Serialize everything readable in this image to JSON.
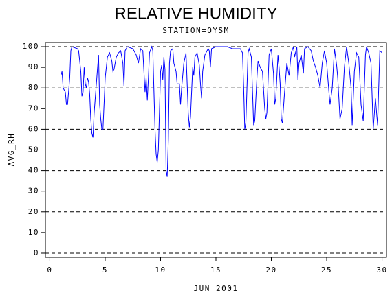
{
  "chart_data": {
    "type": "line",
    "title": "RELATIVE HUMIDITY",
    "subtitle": "STATION=OYSM",
    "x_label": "JUN 2001",
    "y_label": "AVG_RH",
    "xlim": [
      -0.4,
      30.4
    ],
    "ylim": [
      -2,
      102
    ],
    "xticks": [
      0,
      5,
      10,
      15,
      20,
      25,
      30
    ],
    "yticks": [
      0,
      10,
      20,
      30,
      40,
      50,
      60,
      70,
      80,
      90,
      100
    ],
    "gridlines": [
      0,
      20,
      40,
      60,
      80,
      100
    ],
    "series": [
      {
        "color": "#0000ff",
        "x": [
          1.0,
          1.1,
          1.2,
          1.4,
          1.5,
          1.6,
          1.8,
          1.9,
          2.0,
          2.5,
          2.6,
          2.8,
          2.9,
          3.0,
          3.1,
          3.2,
          3.3,
          3.4,
          3.5,
          3.6,
          3.7,
          3.8,
          3.9,
          4.0,
          4.2,
          4.4,
          4.5,
          4.6,
          4.7,
          4.8,
          5.0,
          5.2,
          5.4,
          5.6,
          5.7,
          5.8,
          6.0,
          6.2,
          6.4,
          6.5,
          6.6,
          6.7,
          6.8,
          7.0,
          7.5,
          7.8,
          8.0,
          8.2,
          8.4,
          8.6,
          8.7,
          8.8,
          8.9,
          9.0,
          9.2,
          9.3,
          9.5,
          9.6,
          9.7,
          9.8,
          10.0,
          10.1,
          10.2,
          10.3,
          10.4,
          10.5,
          10.6,
          10.7,
          10.8,
          10.9,
          11.1,
          11.2,
          11.4,
          11.5,
          11.7,
          11.8,
          11.9,
          12.1,
          12.3,
          12.5,
          12.6,
          12.7,
          12.9,
          13.0,
          13.1,
          13.3,
          13.5,
          13.6,
          13.7,
          13.8,
          14.0,
          14.3,
          14.4,
          14.5,
          14.6,
          15.0,
          15.5,
          16.0,
          16.5,
          17.2,
          17.4,
          17.5,
          17.6,
          17.7,
          17.9,
          18.0,
          18.2,
          18.4,
          18.5,
          18.7,
          18.8,
          19.0,
          19.2,
          19.4,
          19.5,
          19.6,
          19.8,
          20.0,
          20.2,
          20.3,
          20.4,
          20.6,
          20.7,
          20.8,
          20.9,
          21.0,
          21.2,
          21.4,
          21.6,
          21.8,
          22.0,
          22.1,
          22.3,
          22.4,
          22.5,
          22.7,
          22.9,
          23.0,
          23.3,
          23.6,
          23.8,
          24.0,
          24.2,
          24.4,
          24.6,
          24.8,
          25.0,
          25.2,
          25.3,
          25.5,
          25.7,
          25.9,
          26.0,
          26.2,
          26.4,
          26.6,
          26.8,
          27.0,
          27.2,
          27.3,
          27.5,
          27.7,
          27.9,
          28.1,
          28.3,
          28.5,
          28.6,
          28.8,
          29.0,
          29.2,
          29.4,
          29.6,
          29.8,
          30.0
        ],
        "values": [
          86,
          88,
          80,
          78,
          72,
          72,
          85,
          98,
          100,
          99,
          98,
          88,
          76,
          78,
          90,
          82,
          80,
          85,
          83,
          77,
          65,
          58,
          56,
          68,
          82,
          96,
          72,
          65,
          60,
          60,
          85,
          95,
          97,
          93,
          88,
          89,
          95,
          97,
          98,
          95,
          92,
          81,
          98,
          100,
          99,
          96,
          92,
          99,
          98,
          78,
          85,
          74,
          85,
          97,
          100,
          98,
          60,
          48,
          44,
          50,
          88,
          91,
          84,
          95,
          89,
          40,
          37,
          55,
          92,
          98,
          99,
          92,
          88,
          82,
          82,
          72,
          80,
          92,
          97,
          68,
          61,
          66,
          90,
          86,
          95,
          97,
          91,
          82,
          75,
          88,
          96,
          99,
          98,
          90,
          99,
          100,
          100,
          100,
          99,
          99,
          97,
          80,
          60,
          63,
          97,
          99,
          95,
          62,
          64,
          85,
          93,
          90,
          88,
          70,
          65,
          68,
          96,
          99,
          87,
          72,
          75,
          96,
          90,
          82,
          65,
          63,
          78,
          92,
          86,
          97,
          100,
          95,
          100,
          84,
          92,
          96,
          87,
          99,
          100,
          98,
          93,
          90,
          86,
          80,
          92,
          98,
          92,
          78,
          72,
          80,
          99,
          91,
          85,
          65,
          70,
          90,
          100,
          92,
          80,
          62,
          88,
          97,
          95,
          72,
          64,
          96,
          100,
          97,
          92,
          60,
          75,
          62,
          98,
          97
        ]
      }
    ]
  }
}
